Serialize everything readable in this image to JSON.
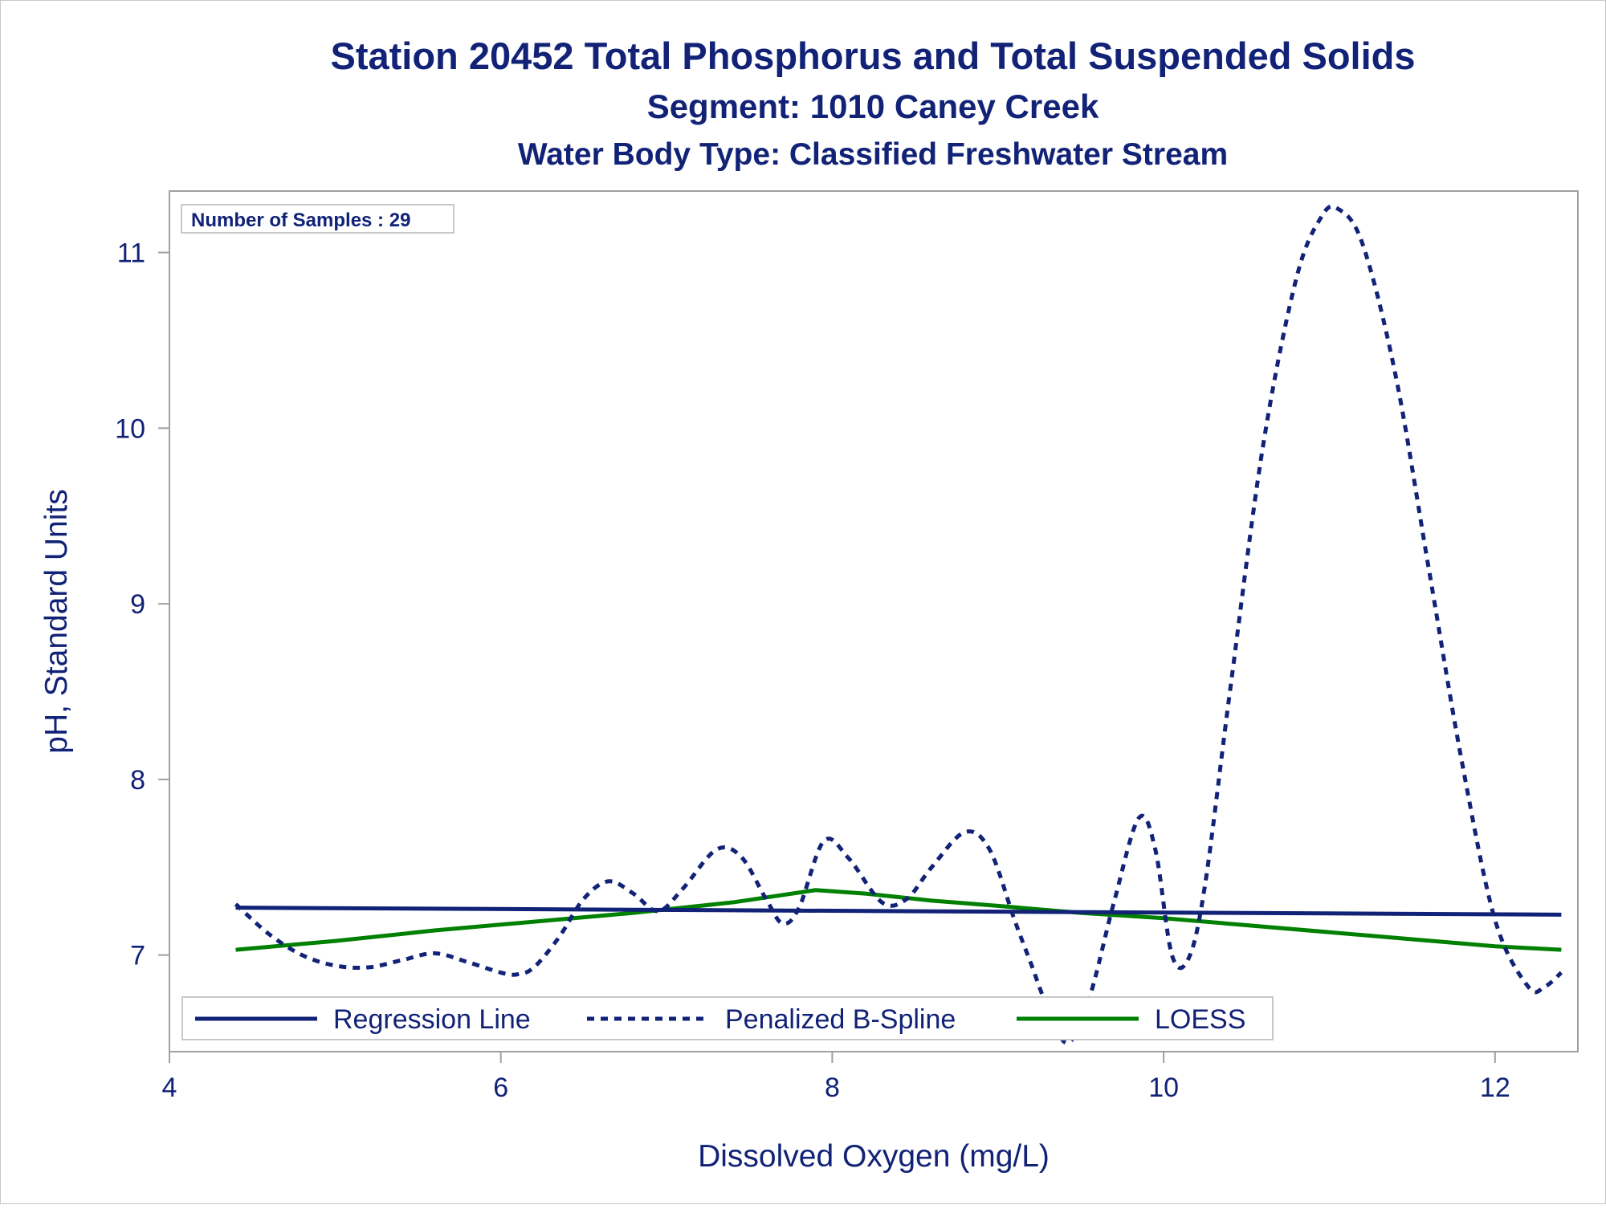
{
  "chart_data": {
    "type": "line",
    "title": "Station 20452  Total Phosphorus and Total Suspended Solids",
    "subtitle": "Segment: 1010  Caney Creek",
    "subtitle2": "Water Body Type: Classified Freshwater Stream",
    "xlabel": "Dissolved Oxygen (mg/L)",
    "ylabel": "pH, Standard Units",
    "annotation": "Number of Samples : 29",
    "xlim": [
      4,
      12.5
    ],
    "ylim": [
      6.45,
      11.35
    ],
    "xticks": [
      "4",
      "6",
      "8",
      "10",
      "12"
    ],
    "yticks": [
      "7",
      "8",
      "9",
      "10",
      "11"
    ],
    "grid": false,
    "legend_position": "bottom-left inside",
    "series": [
      {
        "name": "Regression Line",
        "color": "#112277",
        "style": "solid",
        "x": [
          4.4,
          12.4
        ],
        "y": [
          7.27,
          7.23
        ]
      },
      {
        "name": "Penalized B-Spline",
        "color": "#112277",
        "style": "dashed",
        "x": [
          4.4,
          4.6,
          4.8,
          5.0,
          5.2,
          5.4,
          5.6,
          5.8,
          6.0,
          6.1,
          6.2,
          6.35,
          6.5,
          6.65,
          6.8,
          6.95,
          7.1,
          7.3,
          7.45,
          7.6,
          7.7,
          7.8,
          7.95,
          8.1,
          8.3,
          8.45,
          8.6,
          8.8,
          8.95,
          9.1,
          9.2,
          9.3,
          9.42,
          9.55,
          9.7,
          9.85,
          9.95,
          10.05,
          10.15,
          10.25,
          10.4,
          10.6,
          10.8,
          10.95,
          11.05,
          11.2,
          11.4,
          11.6,
          11.8,
          12.0,
          12.2,
          12.3,
          12.4
        ],
        "y": [
          7.29,
          7.12,
          7.0,
          6.94,
          6.93,
          6.97,
          7.01,
          6.96,
          6.9,
          6.89,
          6.93,
          7.1,
          7.32,
          7.42,
          7.35,
          7.25,
          7.38,
          7.6,
          7.56,
          7.32,
          7.18,
          7.27,
          7.65,
          7.55,
          7.3,
          7.32,
          7.5,
          7.7,
          7.6,
          7.2,
          6.95,
          6.7,
          6.5,
          6.75,
          7.3,
          7.78,
          7.6,
          7.0,
          6.98,
          7.4,
          8.5,
          9.9,
          10.85,
          11.2,
          11.25,
          11.05,
          10.3,
          9.2,
          8.1,
          7.2,
          6.82,
          6.82,
          6.9
        ]
      },
      {
        "name": "LOESS",
        "color": "#008000",
        "style": "solid",
        "x": [
          4.4,
          5.0,
          5.6,
          6.2,
          6.8,
          7.4,
          7.9,
          8.2,
          8.6,
          9.0,
          9.5,
          10.0,
          10.5,
          11.0,
          11.5,
          12.0,
          12.4
        ],
        "y": [
          7.03,
          7.08,
          7.14,
          7.19,
          7.24,
          7.3,
          7.37,
          7.35,
          7.31,
          7.28,
          7.24,
          7.21,
          7.17,
          7.13,
          7.09,
          7.05,
          7.03
        ]
      }
    ]
  }
}
